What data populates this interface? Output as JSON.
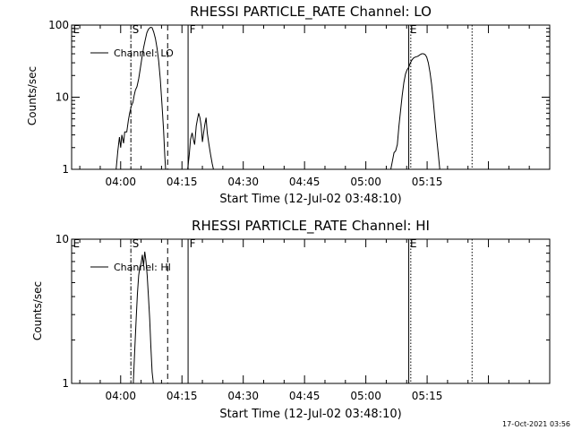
{
  "timestamp": "17-Oct-2021 03:56",
  "chart_data": [
    {
      "type": "line",
      "title": "RHESSI PARTICLE_RATE Channel: LO",
      "xlabel": "Start Time (12-Jul-02 03:48:10)",
      "ylabel": "Counts/sec",
      "yscale": "log",
      "xlim": [
        228,
        345
      ],
      "ylim": [
        1,
        100
      ],
      "x_ticks": [
        {
          "min": 240,
          "label": "04:00"
        },
        {
          "min": 255,
          "label": "04:15"
        },
        {
          "min": 270,
          "label": "04:30"
        },
        {
          "min": 285,
          "label": "04:45"
        },
        {
          "min": 300,
          "label": "05:00"
        },
        {
          "min": 315,
          "label": "05:15"
        }
      ],
      "y_ticks": [
        {
          "value": 1,
          "label": "1"
        },
        {
          "value": 10,
          "label": "10"
        },
        {
          "value": 100,
          "label": "100"
        }
      ],
      "legend": {
        "label": "Channel: LO",
        "position": "top-left"
      },
      "markers": [
        {
          "label": "E",
          "min": 228,
          "style": "none"
        },
        {
          "label": "S",
          "min": 242.5,
          "style": "dashdot"
        },
        {
          "label": "",
          "min": 251.5,
          "style": "dashed"
        },
        {
          "label": "F",
          "min": 256.5,
          "style": "solid"
        },
        {
          "label": "E",
          "min": 310.5,
          "style": "solid"
        },
        {
          "label": "",
          "min": 311.0,
          "style": "dotted"
        },
        {
          "label": "",
          "min": 326.0,
          "style": "dotted"
        }
      ],
      "series": [
        {
          "name": "Channel: LO",
          "points": [
            [
              238.9,
              1.0
            ],
            [
              239.3,
              1.8
            ],
            [
              239.7,
              2.8
            ],
            [
              240.0,
              2.0
            ],
            [
              240.3,
              3.0
            ],
            [
              240.7,
              2.3
            ],
            [
              241.0,
              3.3
            ],
            [
              241.5,
              3.3
            ],
            [
              241.9,
              4.8
            ],
            [
              242.2,
              6.0
            ],
            [
              242.6,
              7.5
            ],
            [
              243.0,
              8.5
            ],
            [
              243.3,
              10.5
            ],
            [
              243.6,
              12.5
            ],
            [
              244.0,
              14
            ],
            [
              244.4,
              18
            ],
            [
              244.8,
              25
            ],
            [
              245.2,
              35
            ],
            [
              245.6,
              48
            ],
            [
              246.0,
              62
            ],
            [
              246.4,
              78
            ],
            [
              246.8,
              88
            ],
            [
              247.3,
              93
            ],
            [
              247.7,
              92
            ],
            [
              248.1,
              80
            ],
            [
              248.5,
              65
            ],
            [
              248.9,
              48
            ],
            [
              249.3,
              32
            ],
            [
              249.7,
              18
            ],
            [
              250.1,
              8
            ],
            [
              250.5,
              3.5
            ],
            [
              250.8,
              1.5
            ],
            [
              251.0,
              1.0
            ]
          ]
        },
        {
          "name": "Channel: LO",
          "points": [
            [
              256.4,
              1.0
            ],
            [
              256.8,
              1.6
            ],
            [
              257.1,
              2.6
            ],
            [
              257.5,
              3.2
            ],
            [
              257.8,
              2.6
            ],
            [
              258.1,
              2.2
            ],
            [
              258.5,
              4.0
            ],
            [
              258.8,
              5.0
            ],
            [
              259.1,
              6.0
            ],
            [
              259.4,
              5.2
            ],
            [
              259.7,
              4.0
            ],
            [
              260.0,
              2.4
            ],
            [
              260.3,
              3.2
            ],
            [
              260.6,
              4.2
            ],
            [
              260.9,
              5.2
            ],
            [
              261.2,
              3.2
            ],
            [
              261.6,
              2.2
            ],
            [
              262.0,
              1.6
            ],
            [
              262.4,
              1.2
            ],
            [
              262.7,
              1.0
            ]
          ]
        },
        {
          "name": "Channel: LO",
          "points": [
            [
              306.1,
              1.0
            ],
            [
              306.5,
              1.3
            ],
            [
              306.9,
              1.7
            ],
            [
              307.3,
              1.8
            ],
            [
              307.7,
              2.2
            ],
            [
              308.1,
              4.0
            ],
            [
              308.5,
              6.5
            ],
            [
              308.9,
              10.5
            ],
            [
              309.3,
              16
            ],
            [
              309.7,
              21
            ],
            [
              310.1,
              24
            ],
            [
              310.5,
              26
            ],
            [
              310.9,
              30
            ],
            [
              311.3,
              33
            ],
            [
              311.7,
              35
            ],
            [
              312.1,
              36
            ],
            [
              312.5,
              36.5
            ],
            [
              312.9,
              37.5
            ],
            [
              313.3,
              39
            ],
            [
              313.7,
              40
            ],
            [
              314.1,
              40
            ],
            [
              314.5,
              39
            ],
            [
              314.9,
              36
            ],
            [
              315.3,
              30
            ],
            [
              315.7,
              22
            ],
            [
              316.1,
              15
            ],
            [
              316.5,
              9
            ],
            [
              316.9,
              5
            ],
            [
              317.3,
              2.8
            ],
            [
              317.7,
              1.7
            ],
            [
              318.1,
              1.0
            ]
          ]
        }
      ]
    },
    {
      "type": "line",
      "title": "RHESSI PARTICLE_RATE Channel: HI",
      "xlabel": "Start Time (12-Jul-02 03:48:10)",
      "ylabel": "Counts/sec",
      "yscale": "log",
      "xlim": [
        228,
        345
      ],
      "ylim": [
        1,
        10
      ],
      "x_ticks": [
        {
          "min": 240,
          "label": "04:00"
        },
        {
          "min": 255,
          "label": "04:15"
        },
        {
          "min": 270,
          "label": "04:30"
        },
        {
          "min": 285,
          "label": "04:45"
        },
        {
          "min": 300,
          "label": "05:00"
        },
        {
          "min": 315,
          "label": "05:15"
        }
      ],
      "y_ticks": [
        {
          "value": 1,
          "label": "1"
        },
        {
          "value": 10,
          "label": "10"
        }
      ],
      "legend": {
        "label": "Channel: HI",
        "position": "top-left"
      },
      "markers": [
        {
          "label": "E",
          "min": 228,
          "style": "none"
        },
        {
          "label": "S",
          "min": 242.5,
          "style": "dashdot"
        },
        {
          "label": "",
          "min": 251.5,
          "style": "dashed"
        },
        {
          "label": "F",
          "min": 256.5,
          "style": "solid"
        },
        {
          "label": "E",
          "min": 310.5,
          "style": "solid"
        },
        {
          "label": "",
          "min": 311.0,
          "style": "dotted"
        },
        {
          "label": "",
          "min": 326.0,
          "style": "dotted"
        }
      ],
      "series": [
        {
          "name": "Channel: HI",
          "points": [
            [
              243.1,
              1.0
            ],
            [
              243.4,
              1.6
            ],
            [
              243.8,
              2.8
            ],
            [
              244.1,
              4.2
            ],
            [
              244.4,
              5.6
            ],
            [
              244.7,
              6.4
            ],
            [
              245.0,
              6.8
            ],
            [
              245.3,
              7.8
            ],
            [
              245.6,
              6.5
            ],
            [
              245.9,
              8.2
            ],
            [
              246.2,
              7.0
            ],
            [
              246.5,
              5.6
            ],
            [
              246.8,
              4.0
            ],
            [
              247.1,
              2.8
            ],
            [
              247.4,
              1.8
            ],
            [
              247.7,
              1.2
            ],
            [
              248.0,
              1.0
            ]
          ]
        }
      ]
    }
  ]
}
